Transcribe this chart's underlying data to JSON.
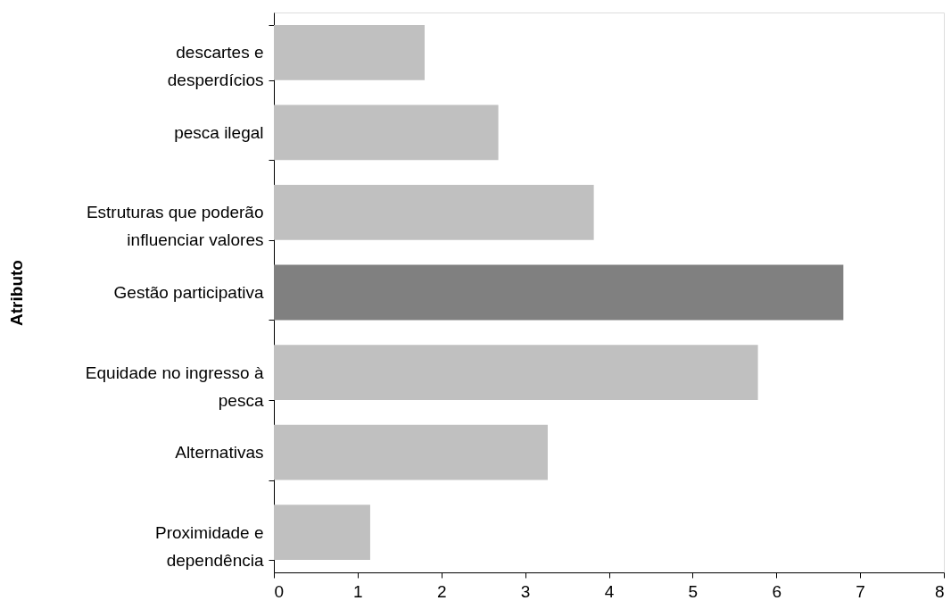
{
  "chart_data": {
    "type": "bar",
    "orientation": "horizontal",
    "ylabel": "Atributo",
    "categories": [
      "descartes e desperdícios",
      "pesca ilegal",
      "Estruturas que poderão influenciar valores",
      "Gestão participativa",
      "Equidade no ingresso à pesca",
      "Alternativas",
      "Proximidade e dependência"
    ],
    "values": [
      1.8,
      2.68,
      3.82,
      6.8,
      5.78,
      3.27,
      1.15
    ],
    "colors": [
      "#c0c0c0",
      "#c0c0c0",
      "#c0c0c0",
      "#808080",
      "#c0c0c0",
      "#c0c0c0",
      "#c0c0c0"
    ],
    "xlim": [
      0,
      8
    ],
    "xticks": [
      0,
      1,
      2,
      3,
      4,
      5,
      6,
      7,
      8
    ]
  }
}
